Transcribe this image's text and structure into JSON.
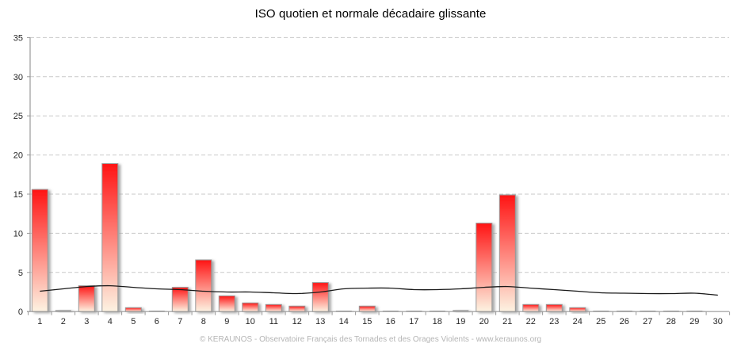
{
  "title": "ISO quotien et normale décadaire glissante",
  "footer": "© KERAUNOS - Observatoire Français des Tornades et des Orages Violents - www.keraunos.org",
  "chart_data": {
    "type": "bar",
    "title": "ISO quotien et normale décadaire glissante",
    "xlabel": "",
    "ylabel": "",
    "ylim": [
      0,
      35
    ],
    "yticks": [
      0,
      5,
      10,
      15,
      20,
      25,
      30,
      35
    ],
    "grid": "horizontal-dashed",
    "legend_position": "none",
    "categories": [
      "1",
      "2",
      "3",
      "4",
      "5",
      "6",
      "7",
      "8",
      "9",
      "10",
      "11",
      "12",
      "13",
      "14",
      "15",
      "16",
      "17",
      "18",
      "19",
      "20",
      "21",
      "22",
      "23",
      "24",
      "25",
      "26",
      "27",
      "28",
      "29",
      "30"
    ],
    "series": [
      {
        "name": "ISO quotien",
        "type": "bar",
        "values": [
          15.6,
          0.2,
          3.3,
          18.9,
          0.5,
          0.1,
          3.1,
          6.6,
          2.0,
          1.1,
          0.9,
          0.7,
          3.7,
          0.1,
          0.7,
          0.1,
          0.1,
          0.1,
          0.2,
          11.3,
          14.9,
          0.9,
          0.9,
          0.5,
          0.1,
          0.1,
          0.1,
          0.1,
          0.1,
          0
        ]
      },
      {
        "name": "normale décadaire glissante",
        "type": "line",
        "values": [
          2.6,
          2.9,
          3.2,
          3.3,
          3.1,
          2.9,
          2.8,
          2.6,
          2.5,
          2.5,
          2.4,
          2.3,
          2.5,
          2.9,
          3.0,
          3.0,
          2.8,
          2.8,
          2.9,
          3.1,
          3.2,
          3.0,
          2.8,
          2.6,
          2.4,
          2.35,
          2.3,
          2.3,
          2.35,
          2.1
        ]
      }
    ],
    "colors": {
      "bar_top": "#ff1414",
      "bar_bottom": "#fdf3e2",
      "bar_border": "#999999",
      "tiny_bar": "#a8a8a8",
      "line": "#1a1a1a",
      "grid": "#c9c9c9",
      "axis": "#999999",
      "tick_label": "#262626",
      "title_text": "#000000",
      "footer_text": "#b5b5b5"
    }
  }
}
